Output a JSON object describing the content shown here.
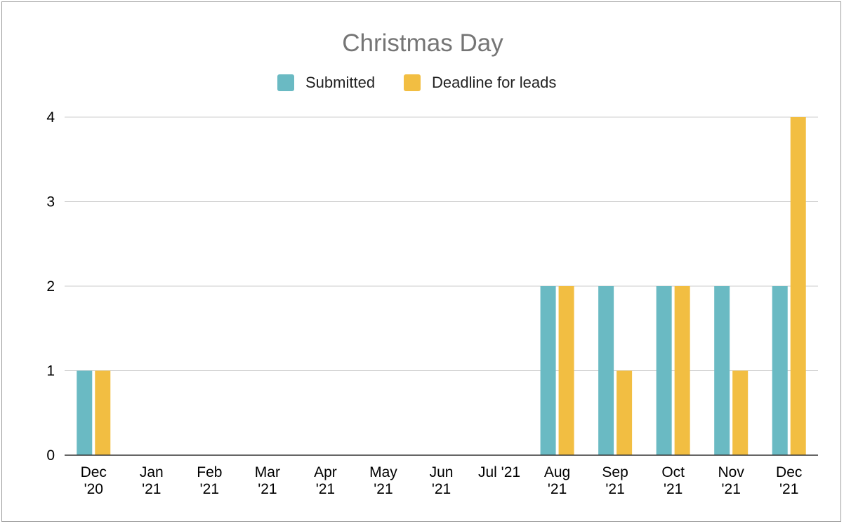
{
  "chart_data": {
    "type": "bar",
    "title": "Christmas Day",
    "xlabel": "",
    "ylabel": "",
    "categories": [
      [
        "Dec",
        "'20"
      ],
      [
        "Jan",
        "'21"
      ],
      [
        "Feb",
        "'21"
      ],
      [
        "Mar",
        "'21"
      ],
      [
        "Apr",
        "'21"
      ],
      [
        "May",
        "'21"
      ],
      [
        "Jun",
        "'21"
      ],
      [
        "Jul '21"
      ],
      [
        "Aug",
        "'21"
      ],
      [
        "Sep",
        "'21"
      ],
      [
        "Oct",
        "'21"
      ],
      [
        "Nov",
        "'21"
      ],
      [
        "Dec",
        "'21"
      ]
    ],
    "series": [
      {
        "name": "Submitted",
        "color": "#6abac3",
        "values": [
          1,
          0,
          0,
          0,
          0,
          0,
          0,
          0,
          2,
          2,
          2,
          2,
          2
        ]
      },
      {
        "name": "Deadline for leads",
        "color": "#f2be42",
        "values": [
          1,
          0,
          0,
          0,
          0,
          0,
          0,
          0,
          2,
          1,
          2,
          1,
          4
        ]
      }
    ],
    "ylim": [
      0,
      4
    ],
    "yticks": [
      0,
      1,
      2,
      3,
      4
    ],
    "grid": true,
    "legend_position": "top"
  }
}
